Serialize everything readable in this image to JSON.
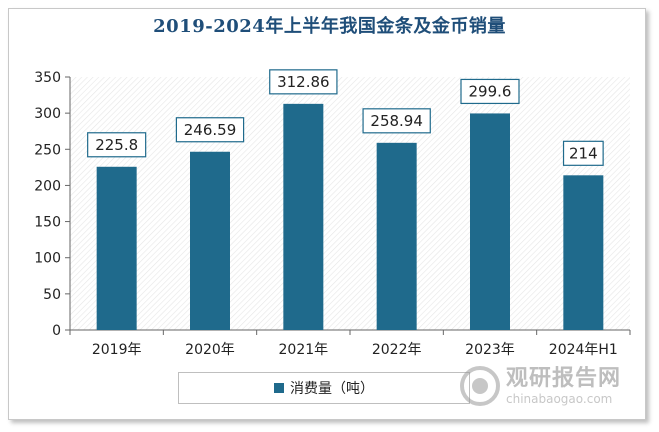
{
  "chart_data": {
    "type": "bar",
    "title": "2019-2024年上半年我国金条及金币销量",
    "categories": [
      "2019年",
      "2020年",
      "2021年",
      "2022年",
      "2023年",
      "2024年H1"
    ],
    "series": [
      {
        "name": "消费量（吨）",
        "values": [
          225.8,
          246.59,
          312.86,
          258.94,
          299.6,
          214
        ]
      }
    ],
    "value_labels": [
      "225.8",
      "246.59",
      "312.86",
      "258.94",
      "299.6",
      "214"
    ],
    "ylim": [
      0,
      350
    ],
    "yticks": [
      0,
      50,
      100,
      150,
      200,
      250,
      300,
      350
    ],
    "xlabel": "",
    "ylabel": "",
    "legend_position": "bottom",
    "bar_color": "#1f6a8c"
  },
  "watermark": {
    "name": "观研报告网",
    "url": "chinabaogao.com"
  }
}
